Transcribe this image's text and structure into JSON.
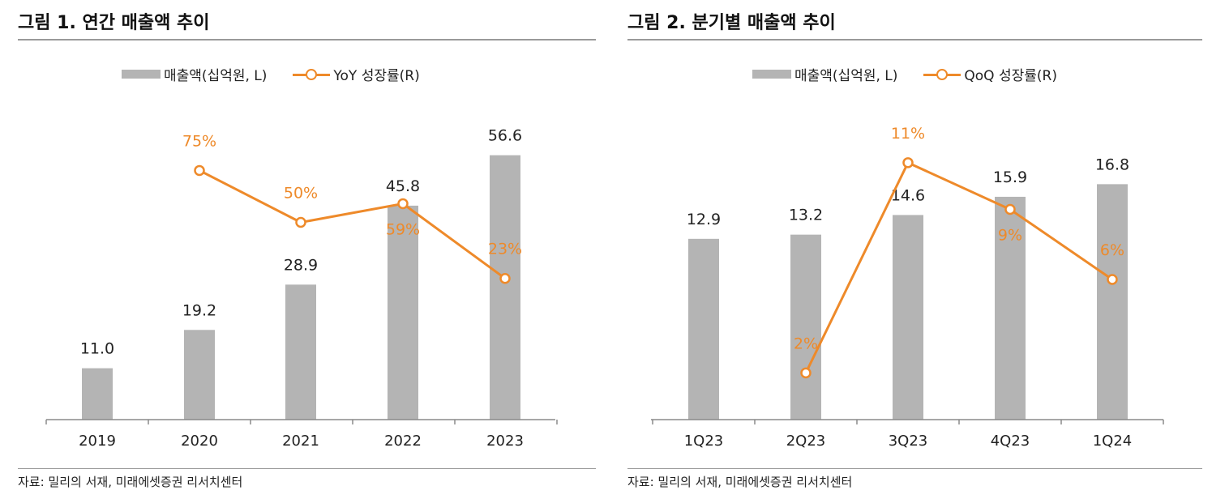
{
  "chart_data": [
    {
      "type": "bar+line",
      "title": "그림 1. 연간 매출액 추이",
      "categories": [
        "2019",
        "2020",
        "2021",
        "2022",
        "2023"
      ],
      "series": [
        {
          "name": "매출액(십억원, L)",
          "type": "bar",
          "axis": "left",
          "values": [
            11.0,
            19.2,
            28.9,
            45.8,
            56.6
          ],
          "labels": [
            "11.0",
            "19.2",
            "28.9",
            "45.8",
            "56.6"
          ]
        },
        {
          "name": "YoY 성장률(R)",
          "type": "line",
          "axis": "right",
          "values": [
            null,
            75,
            50,
            59,
            23
          ],
          "labels": [
            null,
            "75%",
            "50%",
            "59%",
            "23%"
          ]
        }
      ],
      "ylim_left": [
        0,
        60
      ],
      "ylim_right": [
        -45,
        90
      ],
      "colors": {
        "bar": "#b4b4b4",
        "line": "#ee8a2a",
        "line_label": "#ee8a2a"
      },
      "source": "자료: 밀리의 서재, 미래에셋증권 리서치센터"
    },
    {
      "type": "bar+line",
      "title": "그림 2. 분기별 매출액 추이",
      "categories": [
        "1Q23",
        "2Q23",
        "3Q23",
        "4Q23",
        "1Q24"
      ],
      "series": [
        {
          "name": "매출액(십억원, L)",
          "type": "bar",
          "axis": "left",
          "values": [
            12.9,
            13.2,
            14.6,
            15.9,
            16.8
          ],
          "labels": [
            "12.9",
            "13.2",
            "14.6",
            "15.9",
            "16.8"
          ]
        },
        {
          "name": "QoQ 성장률(R)",
          "type": "line",
          "axis": "right",
          "values": [
            null,
            2,
            11,
            9,
            6
          ],
          "labels": [
            null,
            "2%",
            "11%",
            "9%",
            "6%"
          ]
        }
      ],
      "ylim_left": [
        0,
        20
      ],
      "ylim_right": [
        0,
        12
      ],
      "colors": {
        "bar": "#b4b4b4",
        "line": "#ee8a2a",
        "line_label": "#ee8a2a"
      },
      "source": "자료: 밀리의 서재, 미래에셋증권 리서치센터"
    }
  ]
}
